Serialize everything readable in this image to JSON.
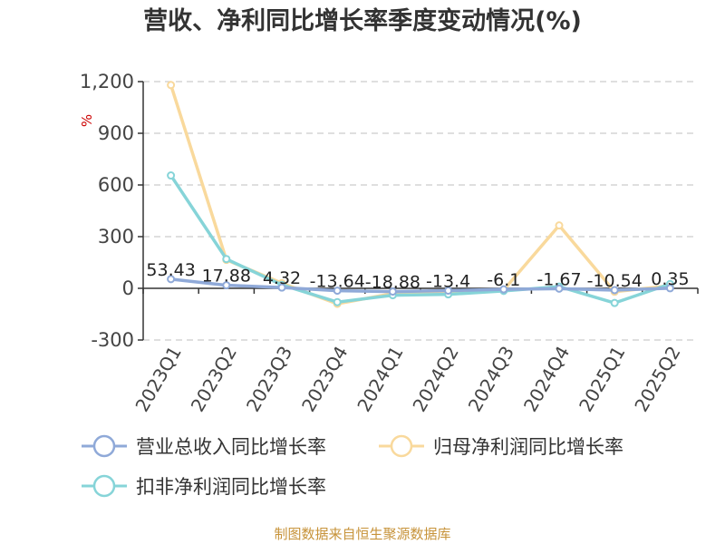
{
  "chart_data": {
    "type": "line",
    "title": "营收、净利同比增长率季度变动情况(%)",
    "ylabel": "%",
    "categories": [
      "2023Q1",
      "2023Q2",
      "2023Q3",
      "2023Q4",
      "2024Q1",
      "2024Q2",
      "2024Q3",
      "2024Q4",
      "2025Q1",
      "2025Q2"
    ],
    "ylim": [
      -300,
      1200
    ],
    "yticks": [
      -300,
      0,
      300,
      600,
      900,
      1200
    ],
    "ytick_labels": [
      "-300",
      "0",
      "300",
      "600",
      "900",
      "1,200"
    ],
    "grid": true,
    "legend_position": "bottom",
    "series": [
      {
        "name": "营业总收入同比增长率",
        "color": "#8fa9d8",
        "values": [
          53.43,
          17.88,
          4.32,
          -13.64,
          -18.88,
          -13.4,
          -6.1,
          -1.67,
          -10.54,
          0.35
        ],
        "labels": [
          "53.43",
          "17.88",
          "4.32",
          "-13.64",
          "-18.88",
          "-13.4",
          "-6.1",
          "-1.67",
          "-10.54",
          "0.35"
        ]
      },
      {
        "name": "归母净利润同比增长率",
        "color": "#f9d99c",
        "values": [
          1180,
          165,
          30,
          -90,
          -30,
          -25,
          -10,
          365,
          -20,
          15
        ]
      },
      {
        "name": "扣非净利润同比增长率",
        "color": "#86d4d8",
        "values": [
          655,
          170,
          20,
          -80,
          -40,
          -35,
          -15,
          10,
          -85,
          25
        ]
      }
    ]
  },
  "source": "制图数据来自恒生聚源数据库"
}
